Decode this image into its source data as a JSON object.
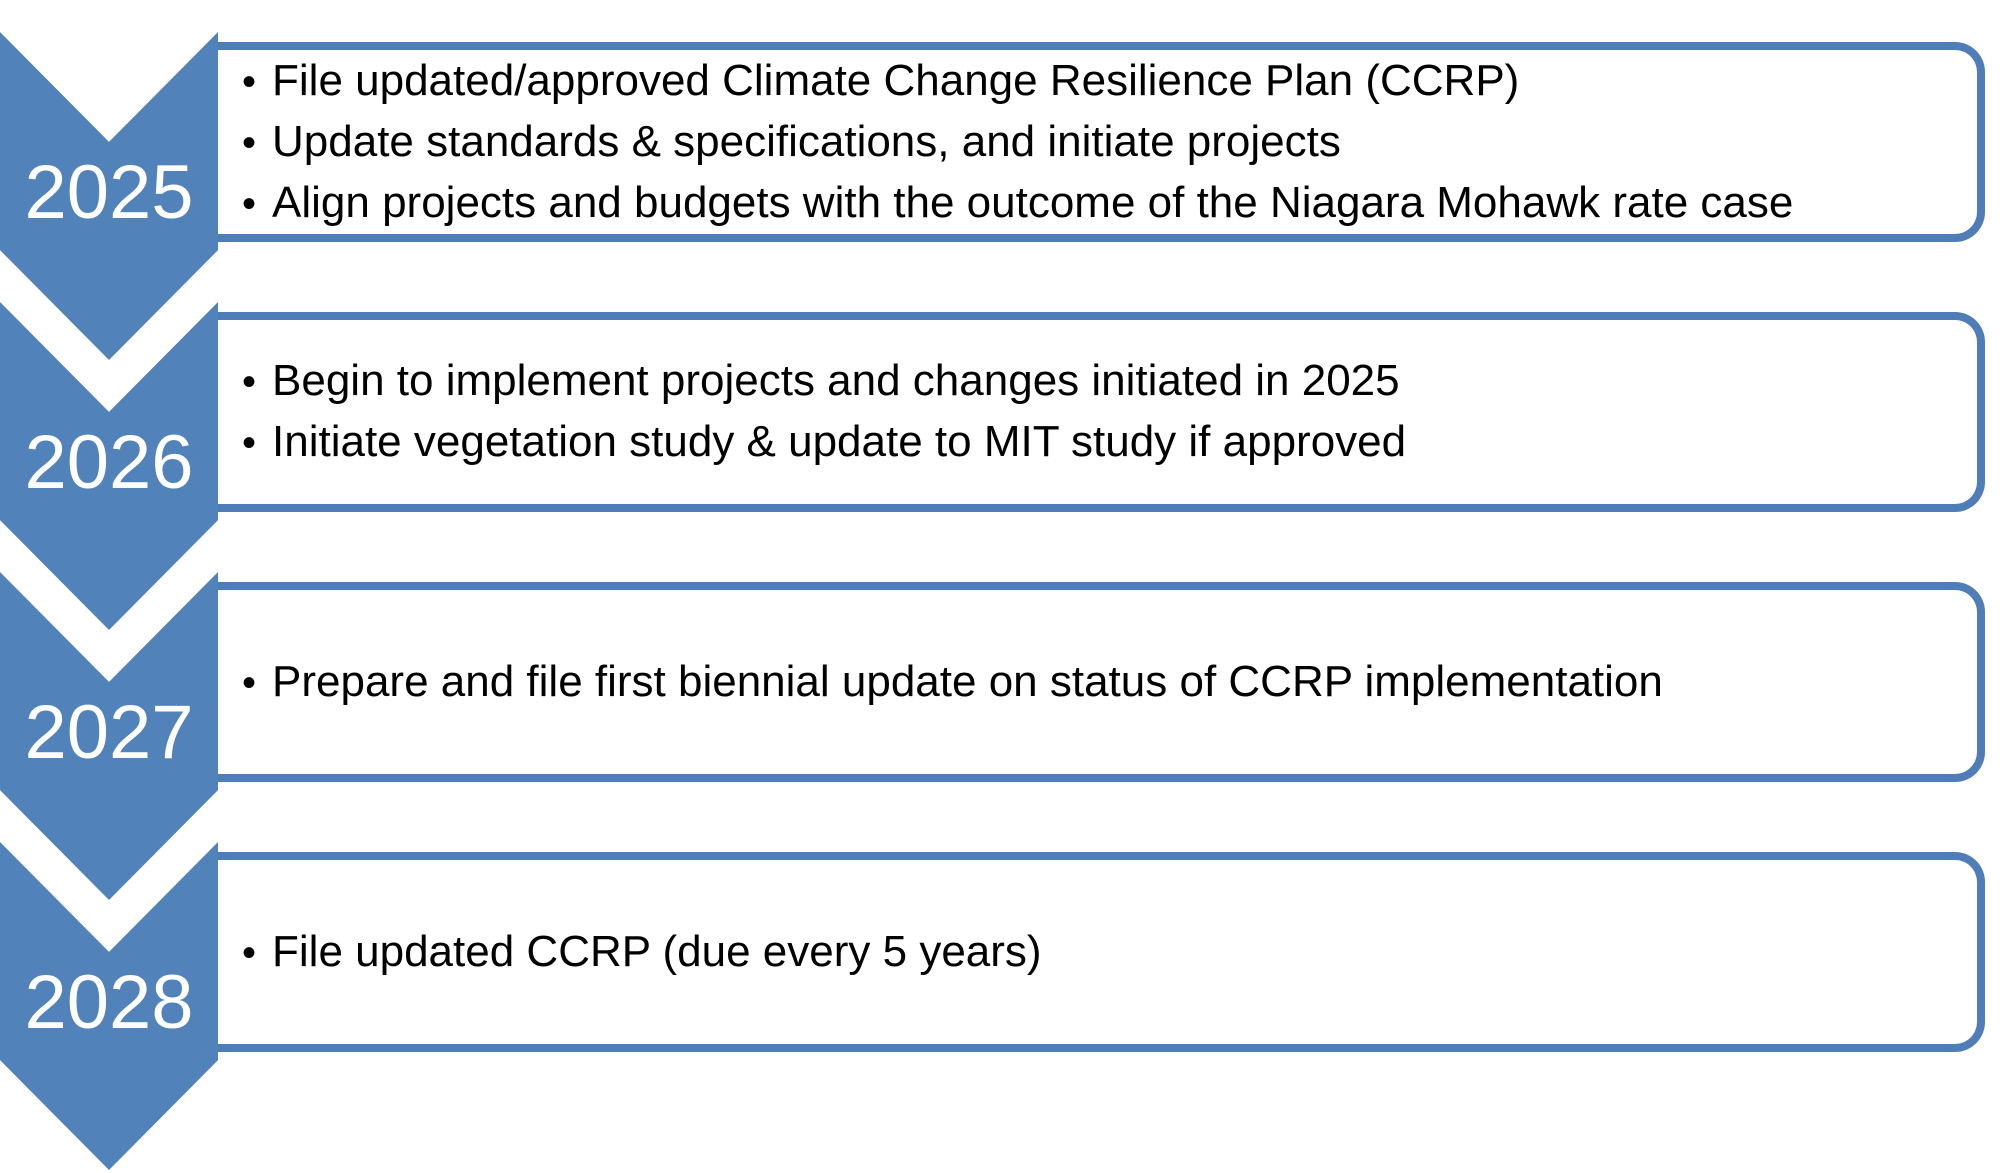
{
  "diagram": {
    "title_implied": "CCRP implementation timeline",
    "bullet_glyph": "•",
    "colors": {
      "chevron_fill": "#5182B9",
      "box_border": "#4E7DB7",
      "year_text": "#FFFFFF",
      "bullet_text": "#000000",
      "background": "#FFFFFF"
    },
    "items": [
      {
        "year": "2025",
        "bullets": [
          "File updated/approved Climate Change Resilience Plan (CCRP)",
          "Update standards & specifications, and initiate projects",
          "Align projects and budgets with the outcome of the Niagara Mohawk rate case"
        ]
      },
      {
        "year": "2026",
        "bullets": [
          "Begin to implement projects and changes initiated in 2025",
          "Initiate vegetation study & update to MIT study if approved"
        ]
      },
      {
        "year": "2027",
        "bullets": [
          "Prepare and file first biennial update on status of CCRP implementation"
        ]
      },
      {
        "year": "2028",
        "bullets": [
          "File updated CCRP (due every 5 years)"
        ]
      }
    ]
  }
}
